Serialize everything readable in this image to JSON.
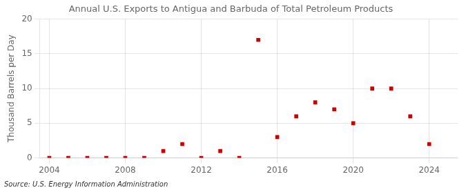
{
  "chart_data": {
    "type": "scatter",
    "title": "Annual U.S. Exports to Antigua and Barbuda of Total Petroleum Products",
    "ylabel": "Thousand Barrels per Day",
    "annotation": "Source: U.S. Energy Information Administration",
    "x": [
      2004,
      2005,
      2006,
      2007,
      2008,
      2009,
      2010,
      2011,
      2012,
      2013,
      2014,
      2015,
      2016,
      2017,
      2018,
      2019,
      2020,
      2021,
      2022,
      2023,
      2024
    ],
    "values": [
      0.0,
      0.0,
      0.0,
      0.0,
      0.0,
      0.0,
      1.0,
      2.0,
      0.0,
      1.0,
      0.0,
      17.0,
      3.0,
      6.0,
      8.0,
      7.0,
      5.0,
      10.0,
      10.0,
      6.0,
      2.0
    ],
    "color": "#cc0000",
    "marker": "square",
    "xlim": [
      2003.5,
      2025.5
    ],
    "xticks": [
      2004,
      2008,
      2012,
      2016,
      2020,
      2024
    ],
    "ylim": [
      0,
      20
    ],
    "yticks": [
      0,
      5,
      10,
      15,
      20
    ],
    "grid": true
  }
}
